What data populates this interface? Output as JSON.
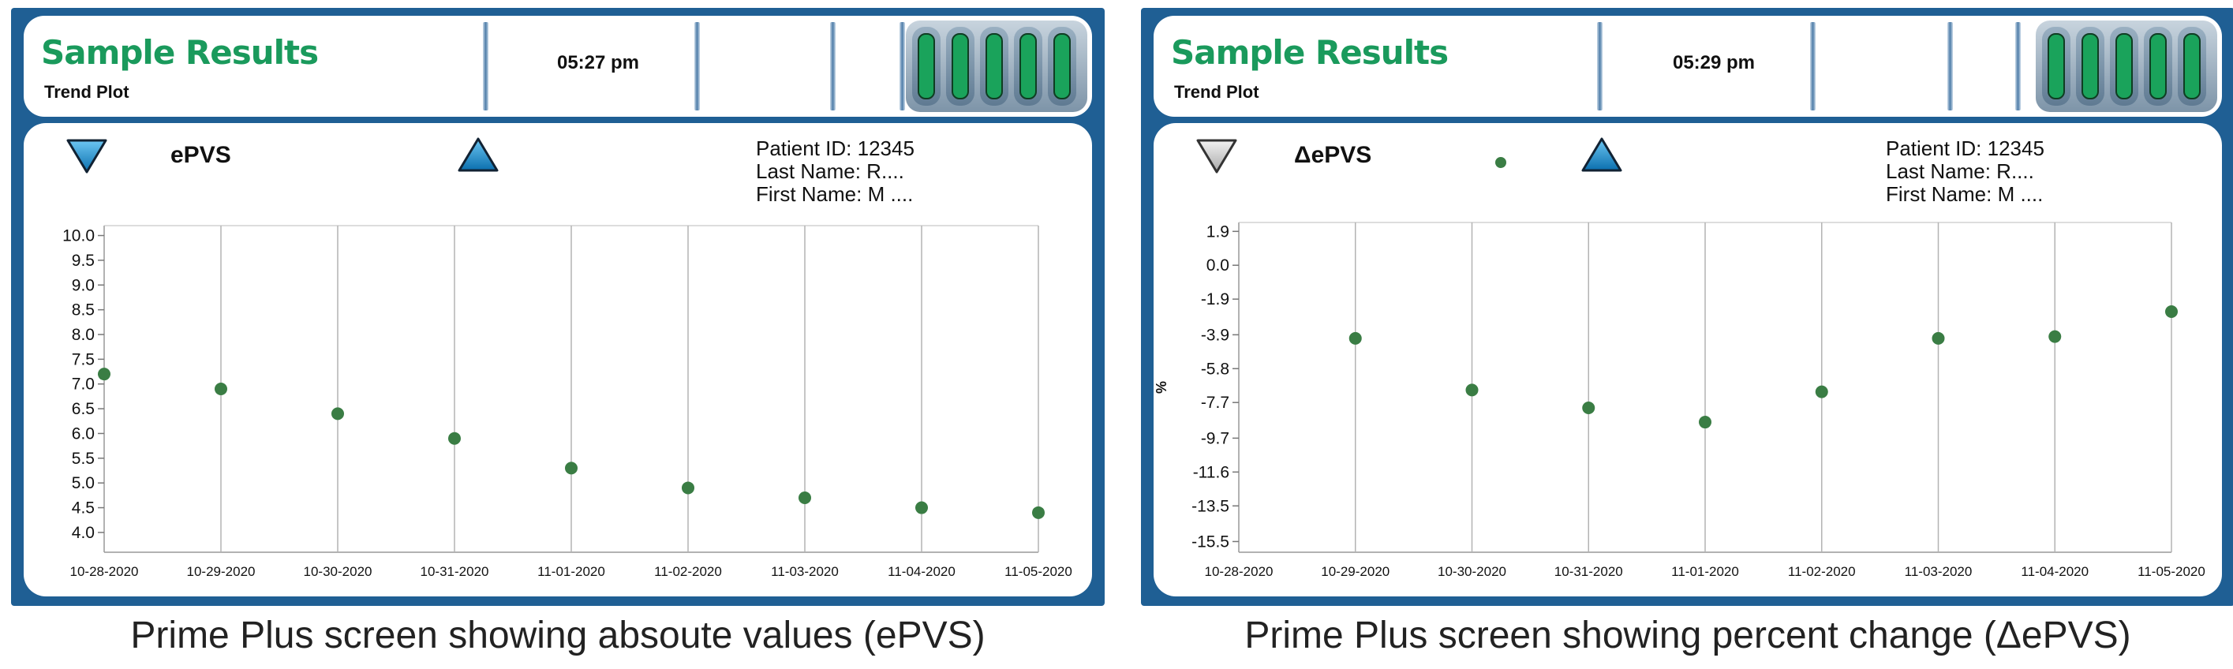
{
  "left_screen": {
    "app_title": "Sample Results",
    "subtitle": "Trend Plot",
    "time": "05:27 pm",
    "metric_label": "ePVS",
    "patient": {
      "id": "Patient ID: 12345",
      "last_name": "Last Name: R....",
      "first_name": "First Name: M ...."
    },
    "caption": "Prime Plus screen showing absoute values (ePVS)"
  },
  "right_screen": {
    "app_title": "Sample Results",
    "subtitle": "Trend Plot",
    "time": "05:29 pm",
    "metric_label": "ΔePVS",
    "patient": {
      "id": "Patient ID: 12345",
      "last_name": "Last Name: R....",
      "first_name": "First Name: M ...."
    },
    "caption": "Prime Plus screen showing percent change (ΔePVS)"
  },
  "colors": {
    "frame": "#1f5f94",
    "title_green": "#1a9a5c",
    "point_green": "#3a7d44",
    "battery_fill": "#1aa35b",
    "arrow_blue": "#1a8fd0",
    "arrow_disabled": "#c8c8c8"
  },
  "icons": {
    "down_arrow": "triangle-down-icon",
    "up_arrow": "triangle-up-icon",
    "battery": "battery-icon"
  },
  "battery_cells": 5,
  "chart_data": [
    {
      "type": "scatter",
      "title": "",
      "xlabel": "",
      "ylabel": "",
      "categories": [
        "10-28-2020",
        "10-29-2020",
        "10-30-2020",
        "10-31-2020",
        "11-01-2020",
        "11-02-2020",
        "11-03-2020",
        "11-04-2020",
        "11-05-2020"
      ],
      "y_ticks": [
        "10.0",
        "9.5",
        "9.0",
        "8.5",
        "8.0",
        "7.5",
        "7.0",
        "6.5",
        "6.0",
        "5.5",
        "5.0",
        "4.5",
        "4.0"
      ],
      "ylim": [
        3.6,
        10.2
      ],
      "grid": "vertical",
      "series": [
        {
          "values": [
            7.2,
            6.9,
            6.4,
            5.9,
            5.3,
            4.9,
            4.7,
            4.5,
            4.4
          ]
        }
      ]
    },
    {
      "type": "scatter",
      "title": "",
      "xlabel": "",
      "ylabel": "%",
      "categories": [
        "10-28-2020",
        "10-29-2020",
        "10-30-2020",
        "10-31-2020",
        "11-01-2020",
        "11-02-2020",
        "11-03-2020",
        "11-04-2020",
        "11-05-2020"
      ],
      "y_ticks": [
        "1.9",
        "0.0",
        "-1.9",
        "-3.9",
        "-5.8",
        "-7.7",
        "-9.7",
        "-11.6",
        "-13.5",
        "-15.5"
      ],
      "ylim": [
        -16.1,
        2.4
      ],
      "grid": "vertical",
      "series": [
        {
          "values": [
            null,
            -4.1,
            -7.0,
            -8.0,
            -8.8,
            -7.1,
            -4.1,
            -4.0,
            -2.6
          ]
        }
      ]
    }
  ]
}
